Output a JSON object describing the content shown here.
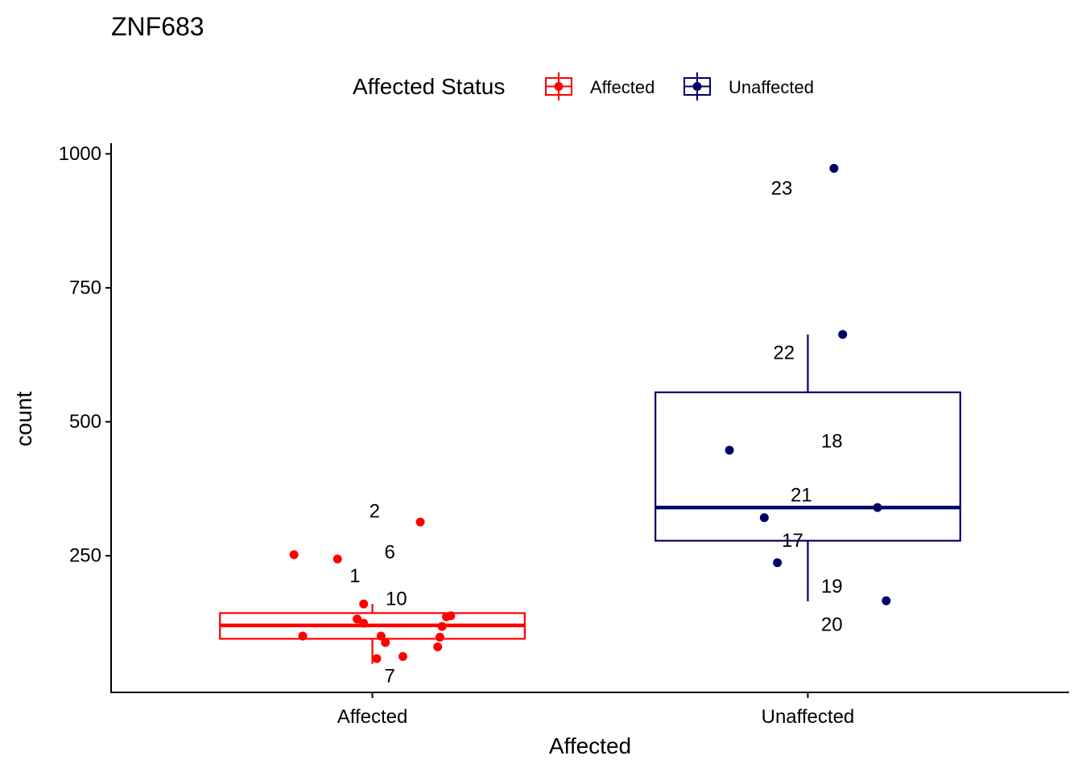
{
  "chart_data": {
    "type": "box",
    "title": "ZNF683",
    "xlabel": "Affected",
    "ylabel": "count",
    "categories": [
      "Affected",
      "Unaffected"
    ],
    "yticks": [
      250,
      500,
      750,
      1000
    ],
    "ylim": [
      -5,
      1020
    ],
    "legend": {
      "title": "Affected Status",
      "position": "top",
      "entries": [
        "Affected",
        "Unaffected"
      ]
    },
    "colors": {
      "Affected": "#ff0000",
      "Unaffected": "#000066"
    },
    "boxes": [
      {
        "category": "Affected",
        "q1": 95,
        "median": 120,
        "q3": 143,
        "whisker_low": 48,
        "whisker_high": 160
      },
      {
        "category": "Unaffected",
        "q1": 278,
        "median": 340,
        "q3": 555,
        "whisker_low": 165,
        "whisker_high": 663
      }
    ],
    "points": [
      {
        "category": "Affected",
        "jitter": -0.18,
        "y": 252
      },
      {
        "category": "Affected",
        "jitter": -0.08,
        "y": 244
      },
      {
        "category": "Affected",
        "jitter": 0.11,
        "y": 313
      },
      {
        "category": "Affected",
        "jitter": -0.02,
        "y": 160
      },
      {
        "category": "Affected",
        "jitter": -0.035,
        "y": 132
      },
      {
        "category": "Affected",
        "jitter": -0.02,
        "y": 124
      },
      {
        "category": "Affected",
        "jitter": 0.18,
        "y": 138
      },
      {
        "category": "Affected",
        "jitter": 0.17,
        "y": 136
      },
      {
        "category": "Affected",
        "jitter": 0.16,
        "y": 118
      },
      {
        "category": "Affected",
        "jitter": -0.16,
        "y": 100
      },
      {
        "category": "Affected",
        "jitter": 0.02,
        "y": 100
      },
      {
        "category": "Affected",
        "jitter": 0.155,
        "y": 98
      },
      {
        "category": "Affected",
        "jitter": 0.03,
        "y": 88
      },
      {
        "category": "Affected",
        "jitter": 0.15,
        "y": 80
      },
      {
        "category": "Affected",
        "jitter": 0.07,
        "y": 62
      },
      {
        "category": "Affected",
        "jitter": 0.01,
        "y": 58
      },
      {
        "category": "Unaffected",
        "jitter": 0.06,
        "y": 973
      },
      {
        "category": "Unaffected",
        "jitter": 0.08,
        "y": 663
      },
      {
        "category": "Unaffected",
        "jitter": -0.18,
        "y": 447
      },
      {
        "category": "Unaffected",
        "jitter": 0.16,
        "y": 340
      },
      {
        "category": "Unaffected",
        "jitter": -0.1,
        "y": 321
      },
      {
        "category": "Unaffected",
        "jitter": -0.07,
        "y": 237
      },
      {
        "category": "Unaffected",
        "jitter": 0.18,
        "y": 166
      }
    ],
    "annotations": [
      {
        "text": "2",
        "category": "Affected",
        "offset": 0.005,
        "y": 333
      },
      {
        "text": "6",
        "category": "Affected",
        "offset": 0.04,
        "y": 256
      },
      {
        "text": "1",
        "category": "Affected",
        "offset": -0.04,
        "y": 212
      },
      {
        "text": "10",
        "category": "Affected",
        "offset": 0.055,
        "y": 169
      },
      {
        "text": "7",
        "category": "Affected",
        "offset": 0.04,
        "y": 25
      },
      {
        "text": "23",
        "category": "Unaffected",
        "offset": -0.06,
        "y": 935
      },
      {
        "text": "22",
        "category": "Unaffected",
        "offset": -0.055,
        "y": 628
      },
      {
        "text": "18",
        "category": "Unaffected",
        "offset": 0.055,
        "y": 463
      },
      {
        "text": "21",
        "category": "Unaffected",
        "offset": -0.015,
        "y": 363
      },
      {
        "text": "17",
        "category": "Unaffected",
        "offset": -0.035,
        "y": 278
      },
      {
        "text": "19",
        "category": "Unaffected",
        "offset": 0.055,
        "y": 192
      },
      {
        "text": "20",
        "category": "Unaffected",
        "offset": 0.055,
        "y": 121
      }
    ]
  }
}
